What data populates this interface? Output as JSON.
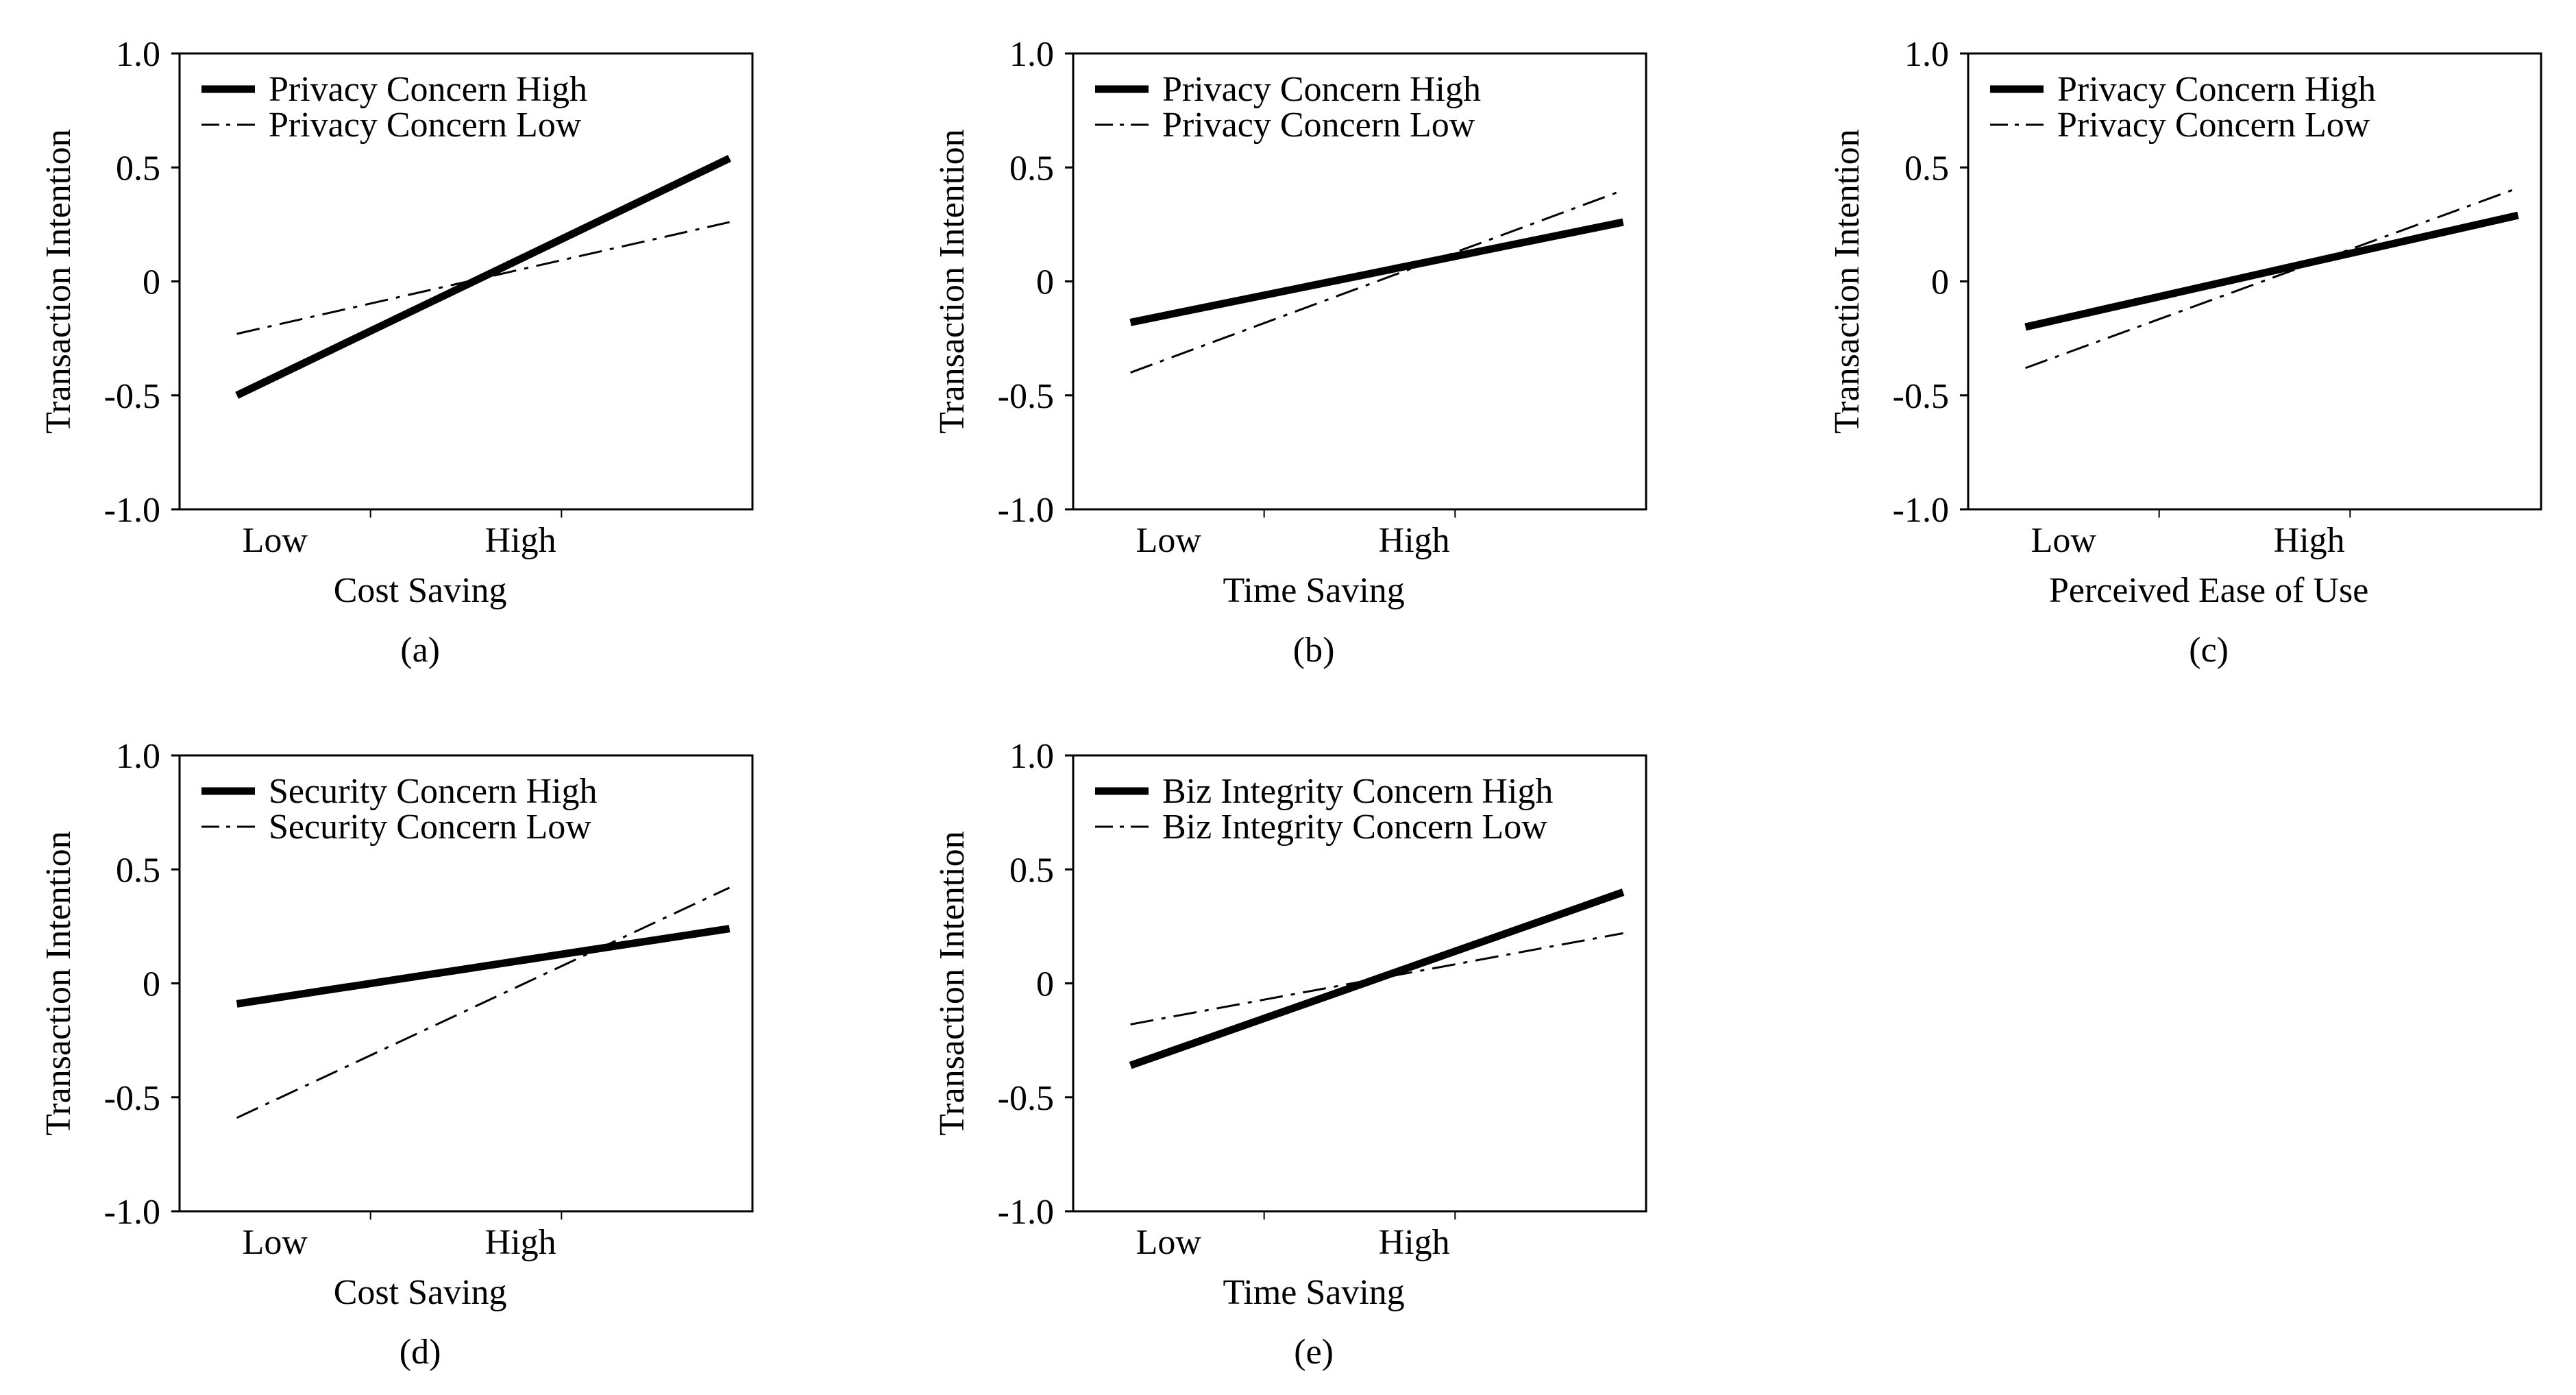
{
  "chart_data": [
    {
      "type": "line",
      "panel_label": "(a)",
      "xlabel": "Cost Saving",
      "ylabel": "Transaction Intention",
      "categories": [
        "Low",
        "High"
      ],
      "ylim": [
        -1.0,
        1.0
      ],
      "yticks": [
        "1.0",
        "0.5",
        "0",
        "-0.5",
        "-1.0"
      ],
      "legend": "top-left",
      "series": [
        {
          "name": "Privacy Concern High",
          "style": "solid",
          "values": [
            -0.5,
            0.54
          ]
        },
        {
          "name": "Privacy Concern Low",
          "style": "dashdot",
          "values": [
            -0.23,
            0.26
          ]
        }
      ]
    },
    {
      "type": "line",
      "panel_label": "(b)",
      "xlabel": "Time Saving",
      "ylabel": "Transaction Intention",
      "categories": [
        "Low",
        "High"
      ],
      "ylim": [
        -1.0,
        1.0
      ],
      "yticks": [
        "1.0",
        "0.5",
        "0",
        "-0.5",
        "-1.0"
      ],
      "legend": "top-left",
      "series": [
        {
          "name": "Privacy Concern High",
          "style": "solid",
          "values": [
            -0.18,
            0.26
          ]
        },
        {
          "name": "Privacy Concern Low",
          "style": "dashdot",
          "values": [
            -0.4,
            0.4
          ]
        }
      ]
    },
    {
      "type": "line",
      "panel_label": "(c)",
      "xlabel": "Perceived Ease of Use",
      "ylabel": "Transaction Intention",
      "categories": [
        "Low",
        "High"
      ],
      "ylim": [
        -1.0,
        1.0
      ],
      "yticks": [
        "1.0",
        "0.5",
        "0",
        "-0.5",
        "-1.0"
      ],
      "legend": "top-left",
      "series": [
        {
          "name": "Privacy Concern High",
          "style": "solid",
          "values": [
            -0.2,
            0.29
          ]
        },
        {
          "name": "Privacy Concern Low",
          "style": "dashdot",
          "values": [
            -0.38,
            0.41
          ]
        }
      ]
    },
    {
      "type": "line",
      "panel_label": "(d)",
      "xlabel": "Cost Saving",
      "ylabel": "Transaction Intention",
      "categories": [
        "Low",
        "High"
      ],
      "ylim": [
        -1.0,
        1.0
      ],
      "yticks": [
        "1.0",
        "0.5",
        "0",
        "-0.5",
        "-1.0"
      ],
      "legend": "top-left",
      "series": [
        {
          "name": "Security Concern High",
          "style": "solid",
          "values": [
            -0.09,
            0.24
          ]
        },
        {
          "name": "Security Concern Low",
          "style": "dashdot",
          "values": [
            -0.59,
            0.42
          ]
        }
      ]
    },
    {
      "type": "line",
      "panel_label": "(e)",
      "xlabel": "Time Saving",
      "ylabel": "Transaction Intention",
      "categories": [
        "Low",
        "High"
      ],
      "ylim": [
        -1.0,
        1.0
      ],
      "yticks": [
        "1.0",
        "0.5",
        "0",
        "-0.5",
        "-1.0"
      ],
      "legend": "top-left",
      "series": [
        {
          "name": "Biz Integrity Concern High",
          "style": "solid",
          "values": [
            -0.36,
            0.4
          ]
        },
        {
          "name": "Biz Integrity Concern Low",
          "style": "dashdot",
          "values": [
            -0.18,
            0.22
          ]
        }
      ]
    }
  ]
}
